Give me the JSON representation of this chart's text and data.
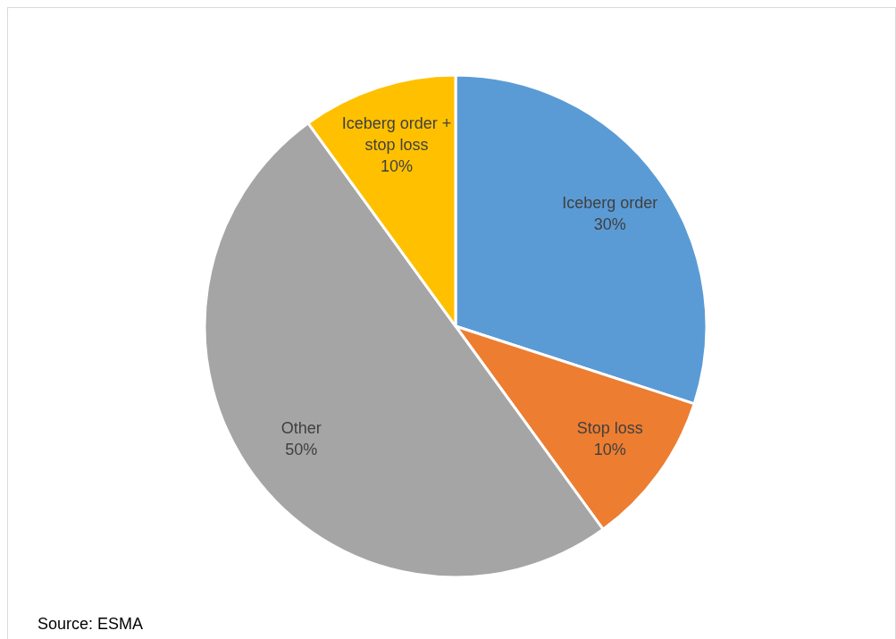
{
  "chart_data": {
    "type": "pie",
    "categories": [
      "Iceberg order",
      "Stop loss",
      "Other",
      "Iceberg order + stop loss"
    ],
    "values": [
      30,
      10,
      50,
      10
    ],
    "value_labels": [
      "30%",
      "10%",
      "50%",
      "10%"
    ],
    "colors": [
      "#5b9bd5",
      "#ed7d31",
      "#a5a5a5",
      "#ffc000"
    ],
    "annotations": [
      "Source: ESMA"
    ]
  }
}
